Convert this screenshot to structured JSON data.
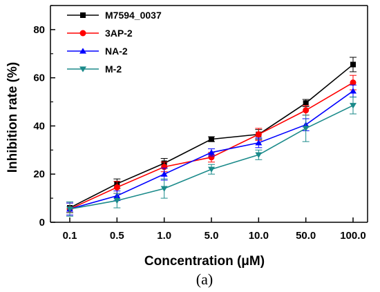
{
  "chart_data": {
    "type": "line",
    "xlabel": "Concentration (μM)",
    "ylabel": "Inhibition rate (%)",
    "categories": [
      "0.1",
      "0.5",
      "1.0",
      "5.0",
      "10.0",
      "50.0",
      "100.0"
    ],
    "ylim": [
      0,
      90
    ],
    "yticks": [
      "0",
      "20",
      "40",
      "60",
      "80"
    ],
    "panel_label": "(a)",
    "legend_position": "top-left",
    "grid": false,
    "series": [
      {
        "name": "M7594_0037",
        "color": "#000000",
        "marker": "square",
        "values": [
          6,
          16,
          24.5,
          34.5,
          36.5,
          49.5,
          65.5
        ],
        "errors": [
          2.0,
          2.0,
          2.0,
          1.0,
          2.0,
          1.5,
          3.0
        ]
      },
      {
        "name": "3AP-2",
        "color": "#ff0000",
        "marker": "circle",
        "values": [
          5.5,
          14.5,
          23,
          27,
          36.5,
          46.5,
          58
        ],
        "errors": [
          2.5,
          2.5,
          2.0,
          2.0,
          2.5,
          2.0,
          3.0
        ]
      },
      {
        "name": "NA-2",
        "color": "#0000ff",
        "marker": "triangle-up",
        "values": [
          5.5,
          11,
          20,
          29,
          33,
          40.5,
          54.5
        ],
        "errors": [
          2.5,
          2.0,
          2.5,
          1.5,
          2.0,
          2.5,
          2.5
        ]
      },
      {
        "name": "M-2",
        "color": "#1a8a8a",
        "marker": "triangle-down",
        "values": [
          5.5,
          9,
          14,
          22,
          28,
          39,
          48.5
        ],
        "errors": [
          3.0,
          3.0,
          4.0,
          2.0,
          2.0,
          5.5,
          3.5
        ]
      }
    ]
  }
}
